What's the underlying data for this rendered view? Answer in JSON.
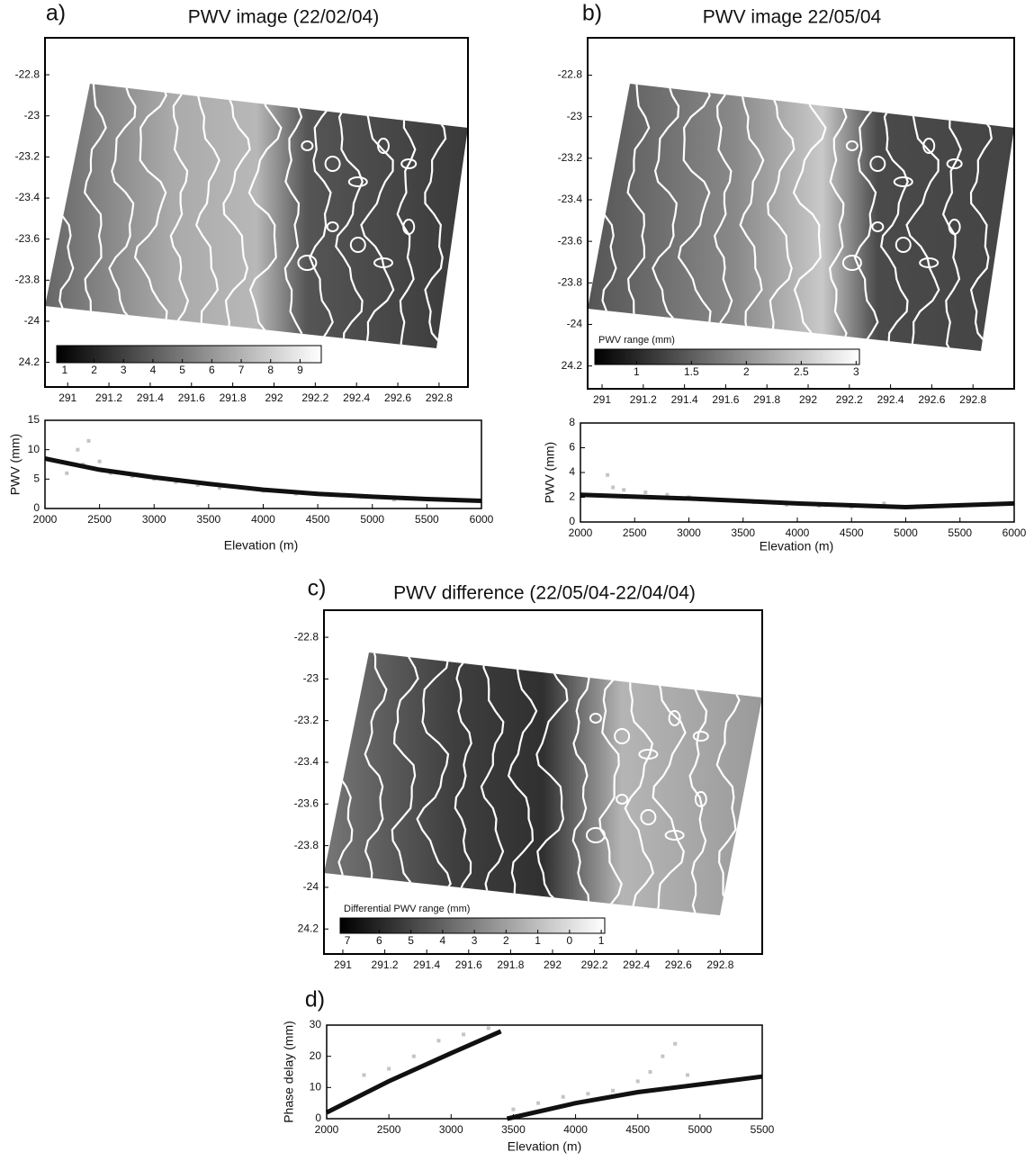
{
  "chart_data": [
    {
      "type": "map",
      "panel": "a)",
      "title": "PWV image (22/02/04)",
      "xlim": [
        290.89,
        292.94
      ],
      "ylim": [
        -24.32,
        -22.62
      ],
      "xticks": [
        291,
        291.2,
        291.4,
        291.6,
        291.8,
        292,
        292.2,
        292.4,
        292.6,
        292.8
      ],
      "yticks": [
        -22.8,
        -23,
        -23.2,
        -23.4,
        -23.6,
        -23.8,
        -24,
        {
          "value": -24.2,
          "label": "24.2"
        }
      ],
      "colorbar": {
        "lim": [
          0.73,
          9.72
        ],
        "ticks": [
          1,
          2,
          3,
          4,
          5,
          6,
          7,
          8,
          9
        ]
      }
    },
    {
      "type": "scatter",
      "xlabel": "Elevation (m)",
      "ylabel": "PWV (mm)",
      "xlim": [
        2000,
        6000
      ],
      "ylim": [
        0,
        15
      ],
      "xticks": [
        2000,
        2500,
        3000,
        3500,
        4000,
        4500,
        5000,
        5500,
        6000
      ],
      "yticks": [
        0,
        5,
        10,
        15
      ],
      "series": [
        {
          "type": "points",
          "color": "#c4c4c4",
          "x": [
            2200,
            2300,
            2350,
            2400,
            2500,
            2600,
            2800,
            3000,
            3200,
            3400,
            3600,
            3800,
            4000,
            4300,
            4600,
            4900,
            5200
          ],
          "values": [
            6,
            10,
            7.5,
            11.5,
            8,
            6,
            5.5,
            5,
            4.5,
            4,
            3.5,
            3.5,
            3,
            2.5,
            2.5,
            2,
            1.5
          ]
        },
        {
          "type": "line",
          "color": "#111111",
          "x": [
            2000,
            2500,
            3000,
            3500,
            4000,
            4500,
            5000,
            5500,
            6000
          ],
          "values": [
            8.5,
            6.6,
            5.3,
            4.2,
            3.2,
            2.5,
            2.0,
            1.6,
            1.3
          ]
        }
      ]
    },
    {
      "type": "map",
      "panel": "b)",
      "title": "PWV image 22/05/04",
      "xlim": [
        290.93,
        293.0
      ],
      "ylim": [
        -24.31,
        -22.62
      ],
      "xticks": [
        291,
        291.2,
        291.4,
        291.6,
        291.8,
        292,
        292.2,
        292.4,
        292.6,
        292.8
      ],
      "yticks": [
        -22.8,
        -23,
        -23.2,
        -23.4,
        -23.6,
        -23.8,
        -24,
        {
          "value": -24.2,
          "label": "24.2"
        }
      ],
      "colorbar": {
        "label": "PWV range (mm)",
        "lim": [
          0.62,
          3.03
        ],
        "ticks": [
          1,
          1.5,
          2,
          2.5,
          3
        ]
      }
    },
    {
      "type": "scatter",
      "xlabel": "Elevation (m)",
      "ylabel": "PWV (mm)",
      "xlim": [
        2000,
        6000
      ],
      "ylim": [
        0,
        8
      ],
      "xticks": [
        2000,
        2500,
        3000,
        3500,
        4000,
        4500,
        5000,
        5500,
        6000
      ],
      "yticks": [
        0,
        2,
        4,
        6,
        8
      ],
      "series": [
        {
          "type": "points",
          "color": "#c4c4c4",
          "x": [
            2250,
            2300,
            2400,
            2600,
            2800,
            3000,
            3300,
            3600,
            3900,
            4200,
            4500,
            4800
          ],
          "values": [
            3.8,
            2.8,
            2.6,
            2.4,
            2.2,
            2.0,
            1.8,
            1.6,
            1.4,
            1.3,
            1.2,
            1.5
          ]
        },
        {
          "type": "line",
          "color": "#111111",
          "x": [
            2000,
            3000,
            4000,
            5000,
            6000
          ],
          "values": [
            2.2,
            1.9,
            1.5,
            1.2,
            1.5
          ]
        }
      ]
    },
    {
      "type": "map",
      "panel": "c)",
      "title": "PWV difference (22/05/04-22/04/04)",
      "xlim": [
        290.91,
        293.0
      ],
      "ylim": [
        -24.32,
        -22.67
      ],
      "xticks": [
        291,
        291.2,
        291.4,
        291.6,
        291.8,
        292,
        292.2,
        292.4,
        292.6,
        292.8
      ],
      "yticks": [
        -22.8,
        -23,
        -23.2,
        -23.4,
        -23.6,
        -23.8,
        -24,
        {
          "value": -24.2,
          "label": "24.2"
        }
      ],
      "colorbar": {
        "label": "Differential PWV range (mm)",
        "lim": [
          -7.23,
          1.11
        ],
        "ticks": [
          {
            "value": -7,
            "label": "7"
          },
          {
            "value": -6,
            "label": "6"
          },
          {
            "value": -5,
            "label": "5"
          },
          {
            "value": -4,
            "label": "4"
          },
          {
            "value": -3,
            "label": "3"
          },
          {
            "value": -2,
            "label": "2"
          },
          {
            "value": -1,
            "label": "1"
          },
          0,
          1
        ]
      }
    },
    {
      "type": "scatter",
      "panel": "d)",
      "xlabel": "Elevation (m)",
      "ylabel": "Phase delay (mm)",
      "xlim": [
        2000,
        5500
      ],
      "ylim": [
        0,
        30
      ],
      "xticks": [
        2000,
        2500,
        3000,
        3500,
        4000,
        4500,
        5000,
        5500
      ],
      "yticks": [
        0,
        10,
        20,
        30
      ],
      "series": [
        {
          "type": "points",
          "color": "#c4c4c4",
          "x": [
            2300,
            2500,
            2700,
            2900,
            3100,
            3300,
            3500,
            3700,
            3900,
            4100,
            4300,
            4500,
            4600,
            4700,
            4800,
            4900
          ],
          "values": [
            14,
            16,
            20,
            25,
            27,
            29,
            3,
            5,
            7,
            8,
            9,
            12,
            15,
            20,
            24,
            14
          ]
        },
        {
          "type": "line",
          "color": "#111111",
          "x": [
            2000,
            2500,
            3000,
            3400,
            null,
            3450,
            4000,
            4500,
            5000,
            5500
          ],
          "values": [
            2,
            12,
            21,
            28,
            null,
            0,
            5,
            8.5,
            11,
            13.5
          ]
        }
      ]
    }
  ]
}
